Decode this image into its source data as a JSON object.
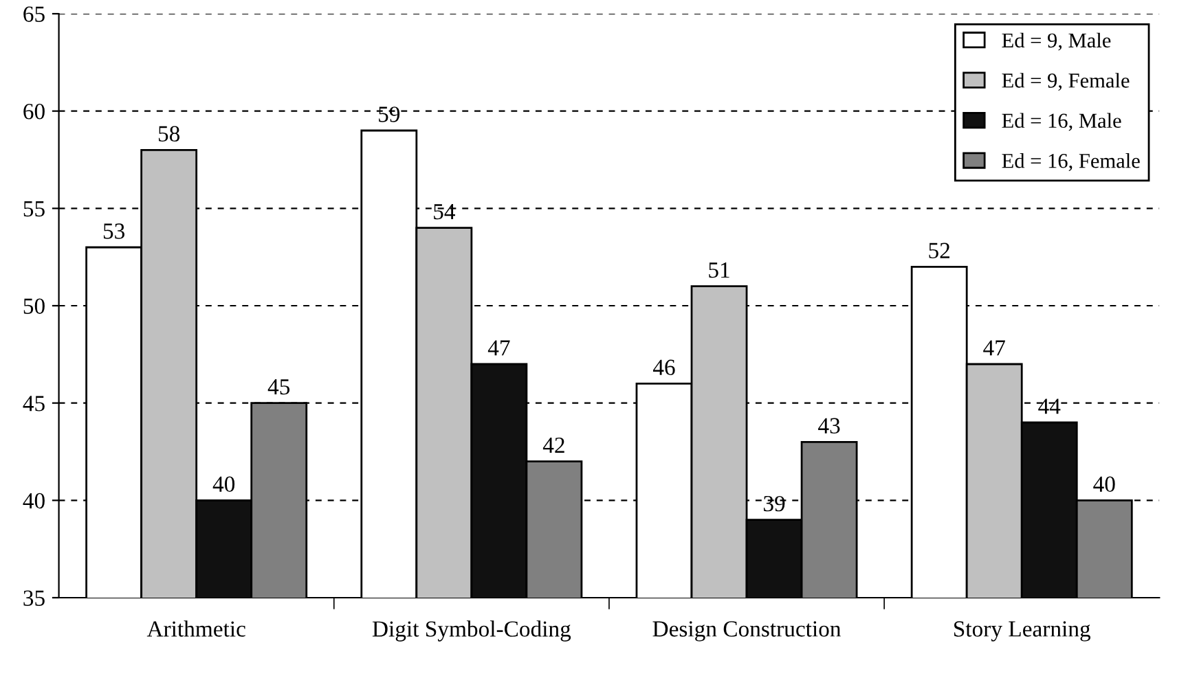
{
  "chart_data": {
    "type": "bar",
    "categories": [
      "Arithmetic",
      "Digit Symbol-Coding",
      "Design Construction",
      "Story Learning"
    ],
    "series": [
      {
        "name": "Ed = 9, Male",
        "color": "#ffffff",
        "values": [
          53,
          59,
          46,
          52
        ]
      },
      {
        "name": "Ed = 9, Female",
        "color": "#c0c0c0",
        "values": [
          58,
          54,
          51,
          47
        ]
      },
      {
        "name": "Ed = 16, Male",
        "color": "#111111",
        "values": [
          40,
          47,
          39,
          44
        ]
      },
      {
        "name": "Ed = 16, Female",
        "color": "#808080",
        "values": [
          45,
          42,
          43,
          40
        ]
      }
    ],
    "ylim": [
      35,
      65
    ],
    "yticks": [
      35,
      40,
      45,
      50,
      55,
      60,
      65
    ],
    "grid": "y",
    "legend": "top right",
    "data_labels": true
  }
}
